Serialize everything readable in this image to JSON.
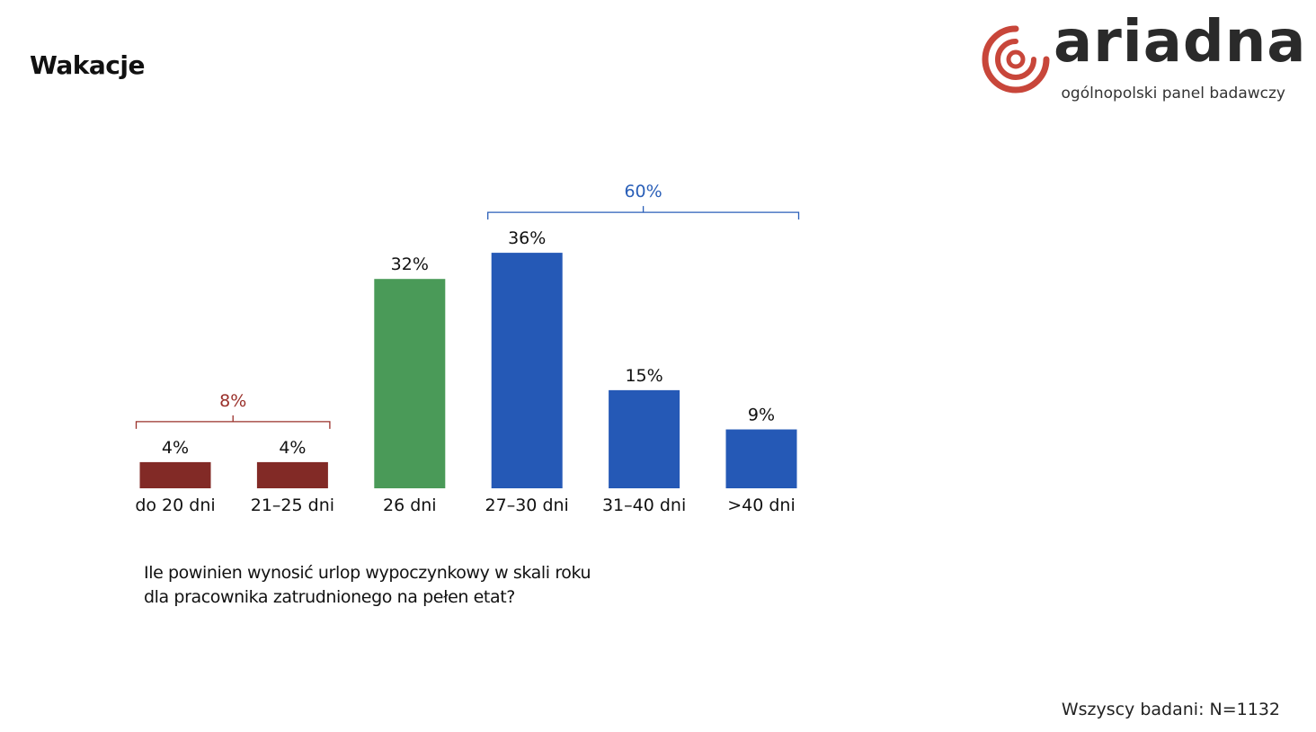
{
  "header": {
    "title": "Wakacje"
  },
  "logo": {
    "wordmark": "ariadna",
    "tagline": "ogólnopolski panel badawczy",
    "icon": "concentric-circle-logo-icon",
    "color": "#c8463a"
  },
  "chart_data": {
    "type": "bar",
    "categories": [
      "do 20 dni",
      "21–25 dni",
      "26 dni",
      "27–30 dni",
      "31–40 dni",
      ">40 dni"
    ],
    "values": [
      4,
      4,
      32,
      36,
      15,
      9
    ],
    "value_labels": [
      "4%",
      "4%",
      "32%",
      "36%",
      "15%",
      "9%"
    ],
    "colors": [
      "#822a26",
      "#822a26",
      "#4a9a58",
      "#2559b6",
      "#2559b6",
      "#2559b6"
    ],
    "ylim": [
      0,
      40
    ],
    "grid": false,
    "legend": "none",
    "groups": [
      {
        "label": "8%",
        "from": 0,
        "to": 1,
        "color": "#9a302a"
      },
      {
        "label": "60%",
        "from": 3,
        "to": 5,
        "color": "#2a5fb8"
      }
    ]
  },
  "question": {
    "line1": "Ile powinien wynosić urlop wypoczynkowy w skali roku",
    "line2": "dla pracownika zatrudnionego na pełen etat?"
  },
  "base_note": "Wszyscy badani: N=1132"
}
